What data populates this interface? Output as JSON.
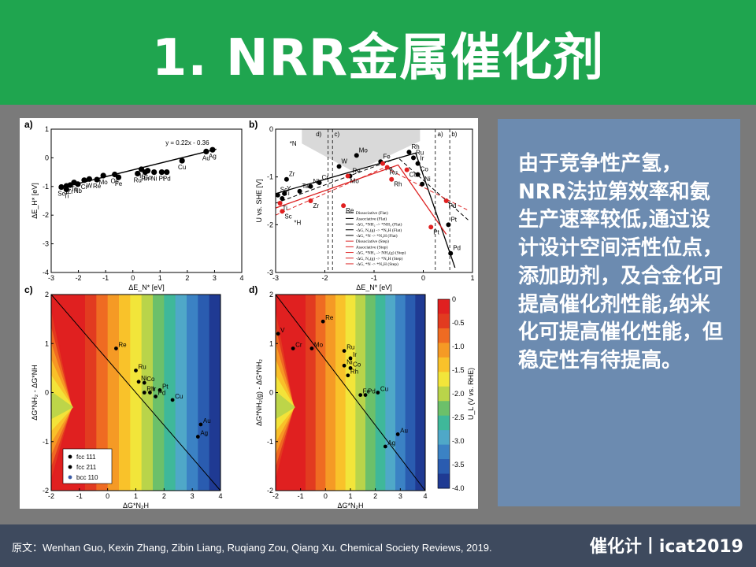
{
  "header": {
    "title": "1. NRR金属催化剂"
  },
  "sidebar_text": "由于竞争性产氢，NRR法拉第效率和氨生产速率较低,通过设计设计空间活性位点，添加助剂，及合金化可提高催化剂性能,纳米化可提高催化性能，但稳定性有待提高。",
  "footer": {
    "citation": "原文：Wenhan Guo, Kexin Zhang, Zibin Liang, Ruqiang Zou, Qiang Xu. Chemical Society Reviews, 2019.",
    "brand": "催化计丨icat2019"
  },
  "colors": {
    "header": "#1fa54f",
    "textbox": "#6c8bb0",
    "footer": "#3e4a5e",
    "fill_red": "#e02020"
  },
  "chart_data": [
    {
      "panel": "a)",
      "type": "scatter",
      "xlabel": "ΔE_N* [eV]",
      "ylabel": "ΔE_H* [eV]",
      "xlim": [
        -3.5,
        4
      ],
      "ylim": [
        -4,
        1
      ],
      "xticks": [
        "-3",
        "-2",
        "-1",
        "0",
        "1",
        "2",
        "3",
        "4"
      ],
      "yticks": [
        "-4",
        "-3",
        "-2",
        "-1",
        "0",
        "1"
      ],
      "fit_label": "y = 0.22x - 0.36",
      "fit": {
        "slope": 0.22,
        "intercept": -0.36
      },
      "points": [
        {
          "label": "Sc",
          "x": -3.1,
          "y": -1.02
        },
        {
          "label": "Y",
          "x": -2.9,
          "y": -0.98
        },
        {
          "label": "Zr",
          "x": -2.75,
          "y": -0.95
        },
        {
          "label": "Ti",
          "x": -2.9,
          "y": -1.1
        },
        {
          "label": "Ta",
          "x": -2.6,
          "y": -0.86
        },
        {
          "label": "Nb",
          "x": -2.45,
          "y": -0.92
        },
        {
          "label": "Cr",
          "x": -2.2,
          "y": -0.78
        },
        {
          "label": "W",
          "x": -2.0,
          "y": -0.74
        },
        {
          "label": "Re",
          "x": -1.7,
          "y": -0.76
        },
        {
          "label": "Mo",
          "x": -1.45,
          "y": -0.62
        },
        {
          "label": "Os",
          "x": -1.0,
          "y": -0.58
        },
        {
          "label": "Fe",
          "x": -0.85,
          "y": -0.68
        },
        {
          "label": "Ru",
          "x": -0.1,
          "y": -0.55
        },
        {
          "label": "Ir",
          "x": 0.05,
          "y": -0.4
        },
        {
          "label": "Co",
          "x": 0.3,
          "y": -0.45
        },
        {
          "label": "Rh",
          "x": 0.2,
          "y": -0.5
        },
        {
          "label": "Ni",
          "x": 0.55,
          "y": -0.5
        },
        {
          "label": "Pt",
          "x": 0.85,
          "y": -0.5
        },
        {
          "label": "Pd",
          "x": 1.05,
          "y": -0.5
        },
        {
          "label": "Cu",
          "x": 1.65,
          "y": -0.1
        },
        {
          "label": "Au",
          "x": 2.6,
          "y": 0.22
        },
        {
          "label": "Ag",
          "x": 2.85,
          "y": 0.28
        }
      ]
    },
    {
      "panel": "b)",
      "type": "line",
      "xlabel": "ΔE_N* [eV]",
      "ylabel": "U vs. SHE [V]",
      "xlim": [
        -3,
        1.5
      ],
      "ylim": [
        -3,
        0
      ],
      "xticks": [
        "-3",
        "-2",
        "-1",
        "0",
        "1"
      ],
      "yticks": [
        "-3",
        "-2",
        "-1",
        "0"
      ],
      "region_labels": [
        "*N",
        "*H",
        "a)",
        "b)",
        "c)",
        "d)"
      ],
      "legend": [
        "Dissociative (Flat)",
        "Associative (Flat)",
        "-ΔG, *NH₂ -> *NH₃ (Flat)",
        "-ΔG, N₂(g) -> *N₂H (Flat)",
        "-ΔG, *N -> *N₂H (Flat)",
        "Dissociative (Step)",
        "Associative (Step)",
        "-ΔG, *NH₂ -> NH₃(g) (Step)",
        "-ΔG, N₂(g) -> *N₂H (Step)",
        "-ΔG, *N -> *N₂H (Step)"
      ],
      "series": [
        {
          "name": "Flat",
          "points": [
            {
              "label": "Sc",
              "x": -2.95,
              "y": -1.38
            },
            {
              "label": "Y",
              "x": -2.8,
              "y": -1.35
            },
            {
              "label": "Zr",
              "x": -2.75,
              "y": -1.05
            },
            {
              "label": "Ti",
              "x": -2.85,
              "y": -1.45
            },
            {
              "label": "Ta",
              "x": -2.45,
              "y": -1.3
            },
            {
              "label": "Nb",
              "x": -2.2,
              "y": -1.2
            },
            {
              "label": "Cr",
              "x": -2.0,
              "y": -1.12
            },
            {
              "label": "Re",
              "x": -1.3,
              "y": -0.98
            },
            {
              "label": "Mo",
              "x": -1.15,
              "y": -0.55
            },
            {
              "label": "W",
              "x": -1.55,
              "y": -0.78
            },
            {
              "label": "Fe",
              "x": -0.6,
              "y": -0.68
            },
            {
              "label": "Rh",
              "x": 0.05,
              "y": -0.48
            },
            {
              "label": "Ru",
              "x": 0.15,
              "y": -0.6
            },
            {
              "label": "Ir",
              "x": 0.25,
              "y": -0.72
            },
            {
              "label": "Co",
              "x": 0.25,
              "y": -0.95
            },
            {
              "label": "Ni",
              "x": 0.35,
              "y": -1.15
            },
            {
              "label": "Pd",
              "x": 1.0,
              "y": -2.6
            },
            {
              "label": "Pt",
              "x": 0.95,
              "y": -2.0
            }
          ]
        },
        {
          "name": "Step",
          "points": [
            {
              "label": "Sc",
              "x": -2.85,
              "y": -1.72
            },
            {
              "label": "Ti",
              "x": -2.9,
              "y": -1.55
            },
            {
              "label": "Zr",
              "x": -2.2,
              "y": -1.5
            },
            {
              "label": "Re",
              "x": -1.45,
              "y": -1.6
            },
            {
              "label": "Mo",
              "x": -1.35,
              "y": -0.98
            },
            {
              "label": "Fe",
              "x": -0.55,
              "y": -0.72
            },
            {
              "label": "Rh",
              "x": -0.35,
              "y": -1.05
            },
            {
              "label": "Ru",
              "x": -0.45,
              "y": -0.8
            },
            {
              "label": "Co",
              "x": 0.0,
              "y": -0.85
            },
            {
              "label": "Pd",
              "x": 0.9,
              "y": -1.5
            },
            {
              "label": "Pt",
              "x": 0.55,
              "y": -2.05
            }
          ]
        }
      ]
    },
    {
      "panel": "c)",
      "type": "heatmap",
      "xlabel": "ΔG*N₂H",
      "ylabel": "ΔG*NH₂ - ΔG*NH",
      "xlim": [
        -2,
        4
      ],
      "ylim": [
        -2,
        2
      ],
      "xticks": [
        "-2",
        "-1",
        "0",
        "1",
        "2",
        "3",
        "4"
      ],
      "yticks": [
        "-2",
        "-1",
        "0",
        "1",
        "2"
      ],
      "legend": [
        "fcc 111",
        "fcc 211",
        "bcc 110"
      ],
      "points": [
        {
          "label": "Re",
          "x": 0.3,
          "y": 0.9
        },
        {
          "label": "Ru",
          "x": 1.0,
          "y": 0.45
        },
        {
          "label": "Ni",
          "x": 1.1,
          "y": 0.22
        },
        {
          "label": "Co",
          "x": 1.3,
          "y": 0.2
        },
        {
          "label": "Rh",
          "x": 1.3,
          "y": 0.0
        },
        {
          "label": "Ir",
          "x": 1.5,
          "y": 0.0
        },
        {
          "label": "Pt",
          "x": 1.85,
          "y": 0.05
        },
        {
          "label": "Pd",
          "x": 1.7,
          "y": -0.08
        },
        {
          "label": "Cu",
          "x": 2.3,
          "y": -0.15
        },
        {
          "label": "Au",
          "x": 3.3,
          "y": -0.65
        },
        {
          "label": "Ag",
          "x": 3.2,
          "y": -0.9
        }
      ]
    },
    {
      "panel": "d)",
      "type": "heatmap",
      "xlabel": "ΔG*N₂H",
      "ylabel": "ΔG*NH₂(g) - ΔG*NH₂",
      "xlim": [
        -2,
        4
      ],
      "ylim": [
        -2,
        2
      ],
      "xticks": [
        "-2",
        "-1",
        "0",
        "1",
        "2",
        "3",
        "4"
      ],
      "yticks": [
        "-2",
        "-1",
        "0",
        "1",
        "2"
      ],
      "colorbar_label": "U_L (V vs. RHE)",
      "colorbar_range": [
        -4,
        0
      ],
      "colorbar_ticks": [
        "0",
        "-0.5",
        "-1.0",
        "-1.5",
        "-2.0",
        "-2.5",
        "-3.0",
        "-3.5",
        "-4.0"
      ],
      "points": [
        {
          "label": "V",
          "x": -1.9,
          "y": 1.2
        },
        {
          "label": "Re",
          "x": -0.1,
          "y": 1.45
        },
        {
          "label": "Cr",
          "x": -1.3,
          "y": 0.9
        },
        {
          "label": "Mo",
          "x": -0.55,
          "y": 0.9
        },
        {
          "label": "Ru",
          "x": 0.75,
          "y": 0.85
        },
        {
          "label": "Ir",
          "x": 1.0,
          "y": 0.7
        },
        {
          "label": "Co",
          "x": 1.0,
          "y": 0.5
        },
        {
          "label": "Ni",
          "x": 0.75,
          "y": 0.55
        },
        {
          "label": "Rh",
          "x": 0.9,
          "y": 0.35
        },
        {
          "label": "Fe",
          "x": 1.4,
          "y": -0.05
        },
        {
          "label": "Pd",
          "x": 1.6,
          "y": -0.05
        },
        {
          "label": "Cu",
          "x": 2.1,
          "y": 0.0
        },
        {
          "label": "Au",
          "x": 2.9,
          "y": -0.85
        },
        {
          "label": "Ag",
          "x": 2.4,
          "y": -1.1
        }
      ]
    }
  ]
}
